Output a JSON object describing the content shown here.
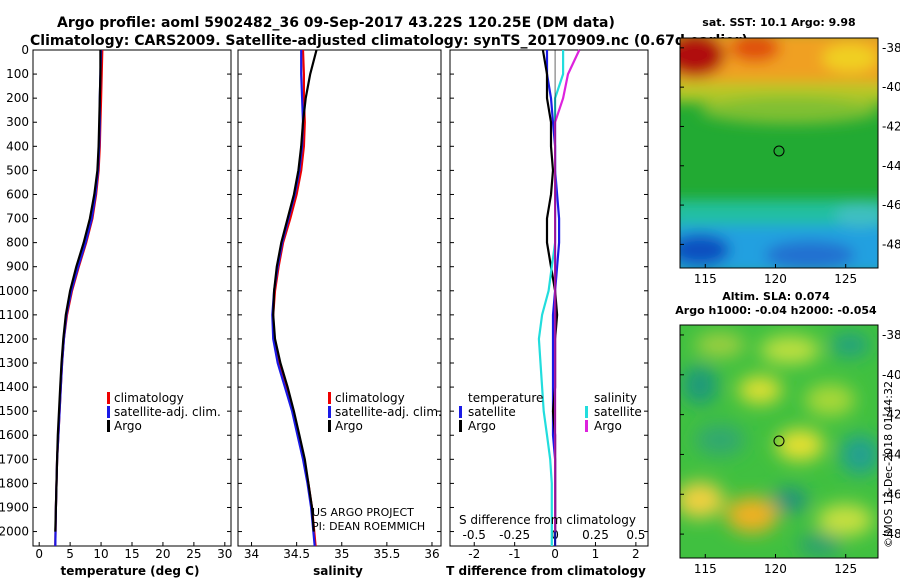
{
  "title": {
    "line1": "Argo profile: aoml 5902482_36 09-Sep-2017 43.22S 120.25E (DM data)",
    "line2": "Climatology: CARS2009. Satellite-adjusted climatology: synTS_20170909.nc (0.67d earlier)"
  },
  "colors": {
    "climatology": "#ee0000",
    "satellite": "#1a1ae6",
    "argo": "#000000",
    "sat_salinity": "#22dddd",
    "argo_salinity": "#dd22dd"
  },
  "depth_ticks": [
    "0",
    "100",
    "200",
    "300",
    "400",
    "500",
    "600",
    "700",
    "800",
    "900",
    "1000",
    "1100",
    "1200",
    "1300",
    "1400",
    "1500",
    "1600",
    "1700",
    "1800",
    "1900",
    "2000"
  ],
  "panels": {
    "temperature": {
      "xlabel": "temperature (deg C)",
      "xticks": [
        "0",
        "5",
        "10",
        "15",
        "20",
        "25",
        "30"
      ],
      "legend": [
        "climatology",
        "satellite-adj. clim.",
        "Argo"
      ]
    },
    "salinity": {
      "xlabel": "salinity",
      "xticks": [
        "34",
        "34.5",
        "35",
        "35.5",
        "36"
      ],
      "legend": [
        "climatology",
        "satellite-adj. clim.",
        "Argo"
      ],
      "notes": [
        "US ARGO PROJECT",
        "PI: DEAN ROEMMICH"
      ]
    },
    "difference": {
      "xlabel": "T difference from climatology",
      "xticks": [
        "-2",
        "-1",
        "0",
        "1",
        "2"
      ],
      "top_label": "S difference from climatology",
      "top_ticks": [
        "-0.5",
        "-0.25",
        "0",
        "0.25",
        "0.5"
      ],
      "legend_t_title": "temperature",
      "legend_s_title": "salinity",
      "legend_t": [
        "satellite",
        "Argo"
      ],
      "legend_s": [
        "satellite",
        "Argo"
      ]
    }
  },
  "map_sst": {
    "title": "sat. SST: 10.1 Argo: 9.98",
    "lat_ticks": [
      "-38",
      "-40",
      "-42",
      "-44",
      "-46",
      "-48"
    ],
    "lon_ticks": [
      "115",
      "120",
      "125"
    ]
  },
  "map_sla": {
    "title1": "Altim. SLA: 0.074",
    "title2": "Argo h1000: -0.04 h2000: -0.054",
    "lat_ticks": [
      "-38",
      "-40",
      "-42",
      "-44",
      "-46",
      "-48"
    ],
    "lon_ticks": [
      "115",
      "120",
      "125"
    ]
  },
  "copyright": "©IMOS 13-Dec-2018 01:44:32",
  "chart_data": [
    {
      "type": "line",
      "title": "temperature profile",
      "xlabel": "temperature (deg C)",
      "ylabel": "depth",
      "xlim": [
        -1,
        31
      ],
      "ylim": [
        2060,
        0
      ],
      "series": [
        {
          "name": "climatology",
          "x": [
            10.2,
            10.1,
            10.0,
            9.9,
            9.8,
            9.6,
            9.2,
            8.6,
            7.6,
            6.4,
            5.3,
            4.5,
            4.0,
            3.7,
            3.5,
            3.3,
            3.1,
            2.9,
            2.8,
            2.7,
            2.6
          ],
          "y": [
            0,
            100,
            200,
            300,
            400,
            500,
            600,
            700,
            800,
            900,
            1000,
            1100,
            1200,
            1300,
            1400,
            1500,
            1600,
            1700,
            1800,
            1900,
            2060
          ]
        },
        {
          "name": "satellite-adj. clim.",
          "x": [
            10.0,
            9.9,
            9.8,
            9.8,
            9.7,
            9.5,
            9.1,
            8.5,
            7.5,
            6.3,
            5.2,
            4.4,
            4.0,
            3.7,
            3.5,
            3.3,
            3.1,
            2.9,
            2.8,
            2.7,
            2.6
          ],
          "y": [
            0,
            100,
            200,
            300,
            400,
            500,
            600,
            700,
            800,
            900,
            1000,
            1100,
            1200,
            1300,
            1400,
            1500,
            1600,
            1700,
            1800,
            1900,
            2060
          ]
        },
        {
          "name": "Argo",
          "x": [
            9.9,
            9.9,
            9.8,
            9.7,
            9.6,
            9.4,
            8.9,
            8.2,
            7.2,
            6.0,
            5.0,
            4.3,
            3.9,
            3.6,
            3.4,
            3.2,
            3.0,
            2.9,
            2.8,
            2.7,
            2.6
          ],
          "y": [
            0,
            100,
            200,
            300,
            400,
            500,
            600,
            700,
            800,
            900,
            1000,
            1100,
            1200,
            1300,
            1400,
            1500,
            1600,
            1700,
            1800,
            1900,
            2000
          ]
        }
      ]
    },
    {
      "type": "line",
      "title": "salinity profile",
      "xlabel": "salinity",
      "ylabel": "depth",
      "xlim": [
        33.85,
        36.1
      ],
      "ylim": [
        2060,
        0
      ],
      "series": [
        {
          "name": "climatology",
          "x": [
            34.57,
            34.58,
            34.58,
            34.59,
            34.58,
            34.55,
            34.5,
            34.43,
            34.35,
            34.3,
            34.26,
            34.24,
            34.25,
            34.3,
            34.38,
            34.46,
            34.52,
            34.58,
            34.63,
            34.67,
            34.71
          ],
          "y": [
            0,
            100,
            200,
            300,
            400,
            500,
            600,
            700,
            800,
            900,
            1000,
            1100,
            1200,
            1300,
            1400,
            1500,
            1600,
            1700,
            1800,
            1900,
            2060
          ]
        },
        {
          "name": "satellite-adj. clim.",
          "x": [
            34.55,
            34.55,
            34.56,
            34.57,
            34.56,
            34.53,
            34.48,
            34.41,
            34.34,
            34.29,
            34.25,
            34.23,
            34.24,
            34.29,
            34.37,
            34.45,
            34.51,
            34.57,
            34.62,
            34.66,
            34.7
          ],
          "y": [
            0,
            100,
            200,
            300,
            400,
            500,
            600,
            700,
            800,
            900,
            1000,
            1100,
            1200,
            1300,
            1400,
            1500,
            1600,
            1700,
            1800,
            1900,
            2060
          ]
        },
        {
          "name": "Argo",
          "x": [
            34.72,
            34.65,
            34.6,
            34.57,
            34.55,
            34.52,
            34.47,
            34.4,
            34.33,
            34.28,
            34.25,
            34.24,
            34.26,
            34.32,
            34.4,
            34.47,
            34.53,
            34.59,
            34.63,
            34.67,
            34.69
          ],
          "y": [
            0,
            100,
            200,
            300,
            400,
            500,
            600,
            700,
            800,
            900,
            1000,
            1100,
            1200,
            1300,
            1400,
            1500,
            1600,
            1700,
            1800,
            1900,
            2000
          ]
        }
      ]
    },
    {
      "type": "line",
      "title": "difference from climatology",
      "xlabel": "T difference from climatology",
      "ylabel": "depth",
      "xlim": [
        -2.6,
        2.3
      ],
      "ylim": [
        2060,
        0
      ],
      "s_axis_lim": [
        -0.65,
        0.575
      ],
      "series": [
        {
          "name": "temperature satellite",
          "x": [
            -0.2,
            -0.2,
            -0.1,
            -0.05,
            0.0,
            0.0,
            0.05,
            0.1,
            0.1,
            0.05,
            0.0,
            -0.05,
            -0.05,
            -0.05,
            -0.05,
            -0.05,
            -0.05,
            0.0,
            0.0,
            0.0,
            0.0
          ],
          "y": [
            0,
            100,
            200,
            300,
            400,
            500,
            600,
            700,
            800,
            900,
            1000,
            1100,
            1200,
            1300,
            1400,
            1500,
            1600,
            1700,
            1800,
            1900,
            2060
          ]
        },
        {
          "name": "temperature Argo",
          "x": [
            -0.3,
            -0.2,
            -0.2,
            -0.1,
            -0.1,
            -0.05,
            -0.1,
            -0.2,
            -0.2,
            -0.1,
            0.0,
            0.05,
            0.0,
            0.0,
            0.0,
            -0.05,
            0.0,
            0.0,
            0.0,
            0.0,
            0.0
          ],
          "y": [
            0,
            100,
            200,
            300,
            400,
            500,
            600,
            700,
            800,
            900,
            1000,
            1100,
            1200,
            1300,
            1400,
            1500,
            1600,
            1700,
            1800,
            1900,
            2000
          ]
        },
        {
          "name": "salinity satellite",
          "x": [
            0.05,
            0.05,
            0.0,
            0.0,
            0.0,
            0.0,
            0.0,
            0.0,
            0.0,
            -0.02,
            -0.04,
            -0.08,
            -0.1,
            -0.09,
            -0.08,
            -0.07,
            -0.05,
            -0.03,
            -0.02,
            -0.02,
            -0.02
          ],
          "y": [
            0,
            100,
            200,
            300,
            400,
            500,
            600,
            700,
            800,
            900,
            1000,
            1100,
            1200,
            1300,
            1400,
            1500,
            1600,
            1700,
            1800,
            1900,
            2060
          ],
          "axis": "salinity"
        },
        {
          "name": "salinity Argo",
          "x": [
            0.15,
            0.08,
            0.05,
            0.0,
            0.0,
            0.0,
            0.0,
            0.0,
            0.0,
            0.0,
            0.0,
            0.0,
            0.0,
            0.0,
            0.0,
            0.0,
            0.0,
            0.0,
            0.0,
            0.0,
            0.0
          ],
          "y": [
            0,
            100,
            200,
            300,
            400,
            500,
            600,
            700,
            800,
            900,
            1000,
            1100,
            1200,
            1300,
            1400,
            1500,
            1600,
            1700,
            1800,
            1900,
            2000
          ],
          "axis": "salinity"
        }
      ]
    }
  ]
}
